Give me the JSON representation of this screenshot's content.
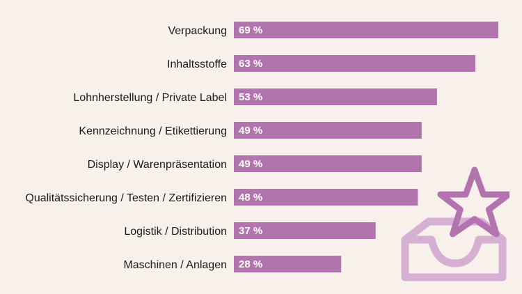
{
  "chart_data": {
    "type": "bar",
    "orientation": "horizontal",
    "title": "",
    "xlabel": "",
    "ylabel": "",
    "xlim": [
      0,
      69
    ],
    "grid": false,
    "legend": "none",
    "categories": [
      "Verpackung",
      "Inhaltsstoffe",
      "Lohnherstellung / Private Label",
      "Kennzeichnung / Etikettierung",
      "Display / Warenpräsentation",
      "Qualitätssicherung / Testen / Zertifizieren",
      "Logistik / Distribution",
      "Maschinen / Anlagen"
    ],
    "values": [
      69,
      63,
      53,
      49,
      49,
      48,
      37,
      28
    ],
    "value_labels": [
      "69 %",
      "63 %",
      "53 %",
      "49 %",
      "49 %",
      "48 %",
      "37 %",
      "28 %"
    ],
    "unit": "%"
  },
  "colors": {
    "background": "#f8f1eb",
    "bar": "#b373ae",
    "icon_tray": "#d6b0d2",
    "icon_star": "#b373ae"
  },
  "icons": {
    "decoration": "tray-with-star-icon"
  }
}
